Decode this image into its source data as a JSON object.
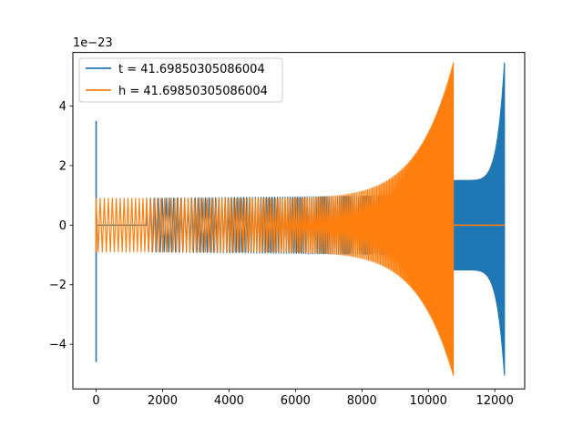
{
  "chart_data": {
    "type": "line",
    "title": "",
    "xlabel": "",
    "ylabel": "",
    "offset_text": "1e−23",
    "xlim": [
      -700,
      12900
    ],
    "ylim": [
      -5.5,
      5.8
    ],
    "xticks": [
      0,
      2000,
      4000,
      6000,
      8000,
      10000,
      12000
    ],
    "xtick_labels": [
      "0",
      "2000",
      "4000",
      "6000",
      "8000",
      "10000",
      "12000"
    ],
    "yticks": [
      -4,
      -2,
      0,
      2,
      4
    ],
    "ytick_labels": [
      "−4",
      "−2",
      "0",
      "2",
      "4"
    ],
    "grid": false,
    "legend_position": "upper-left",
    "series": [
      {
        "name": "t = 41.69850305086004",
        "color": "#1f77b4",
        "spike_start": {
          "x": 0,
          "min": -4.6,
          "max": 3.5
        },
        "flat_ranges": [
          [
            0,
            1520
          ]
        ],
        "chirp": {
          "x_start": 1520,
          "x_end": 12290,
          "start_amplitude": 0.9,
          "merger_amplitude_max": 5.45,
          "merger_amplitude_min": -5.05,
          "ringdown_start": 10750,
          "ringdown_amplitude": 1.5
        }
      },
      {
        "name": "h = 41.69850305086004",
        "color": "#ff7f0e",
        "start_spike": {
          "x": 0,
          "min": -0.9,
          "max": 0.6
        },
        "chirp": {
          "x_start": 0,
          "x_end": 10750,
          "start_amplitude": 0.9,
          "merger_amplitude_max": 5.45,
          "merger_amplitude_min": -5.05
        },
        "flat_ranges": [
          [
            10750,
            12290
          ]
        ]
      }
    ]
  }
}
